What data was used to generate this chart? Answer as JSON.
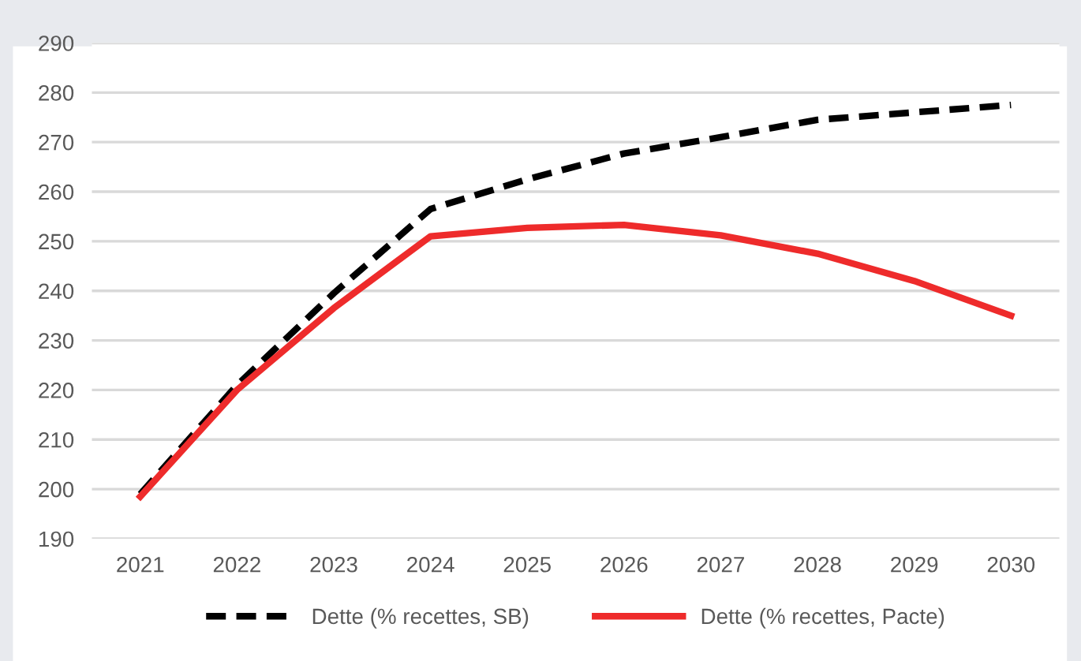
{
  "chart_data": {
    "type": "line",
    "categories": [
      "2021",
      "2022",
      "2023",
      "2024",
      "2025",
      "2026",
      "2027",
      "2028",
      "2029",
      "2030"
    ],
    "series": [
      {
        "name": "Dette (% recettes, SB)",
        "color": "#000000",
        "line_style": "dashed",
        "values": [
          199,
          221,
          239.5,
          256.5,
          262.5,
          267.7,
          271,
          274.5,
          276,
          277.5
        ]
      },
      {
        "name": "Dette (% recettes, Pacte)",
        "color": "#ee2b2b",
        "line_style": "solid",
        "values": [
          198.5,
          220,
          236.5,
          251,
          252.7,
          253.3,
          251.2,
          247.5,
          242,
          235
        ]
      }
    ],
    "ylim": [
      190,
      290
    ],
    "yticks": [
      190,
      200,
      210,
      220,
      230,
      240,
      250,
      260,
      270,
      280,
      290
    ],
    "grid": "y",
    "legend": "bottom",
    "marker": "none"
  }
}
